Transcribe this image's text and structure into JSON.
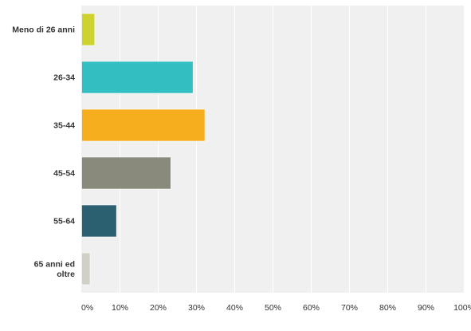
{
  "chart_data": {
    "type": "bar",
    "orientation": "horizontal",
    "categories": [
      "Meno di 26 anni",
      "26-34",
      "35-44",
      "45-54",
      "55-64",
      "65 anni ed oltre"
    ],
    "category_lines": [
      [
        "Meno di 26 anni"
      ],
      [
        "26-34"
      ],
      [
        "35-44"
      ],
      [
        "45-54"
      ],
      [
        "55-64"
      ],
      [
        "65 anni ed",
        "oltre"
      ]
    ],
    "values": [
      3.4,
      29.1,
      32.2,
      23.3,
      9.1,
      2.2
    ],
    "colors": [
      "#cdd22e",
      "#33bfc1",
      "#f7ae1e",
      "#898a7b",
      "#2a6070",
      "#d1d0c6"
    ],
    "xlim": [
      0,
      100
    ],
    "x_ticks": [
      "0%",
      "10%",
      "20%",
      "30%",
      "40%",
      "50%",
      "60%",
      "70%",
      "80%",
      "90%",
      "100%"
    ],
    "grid": true,
    "plot_background": "#f0f0f0",
    "grid_color": "#ffffff"
  }
}
